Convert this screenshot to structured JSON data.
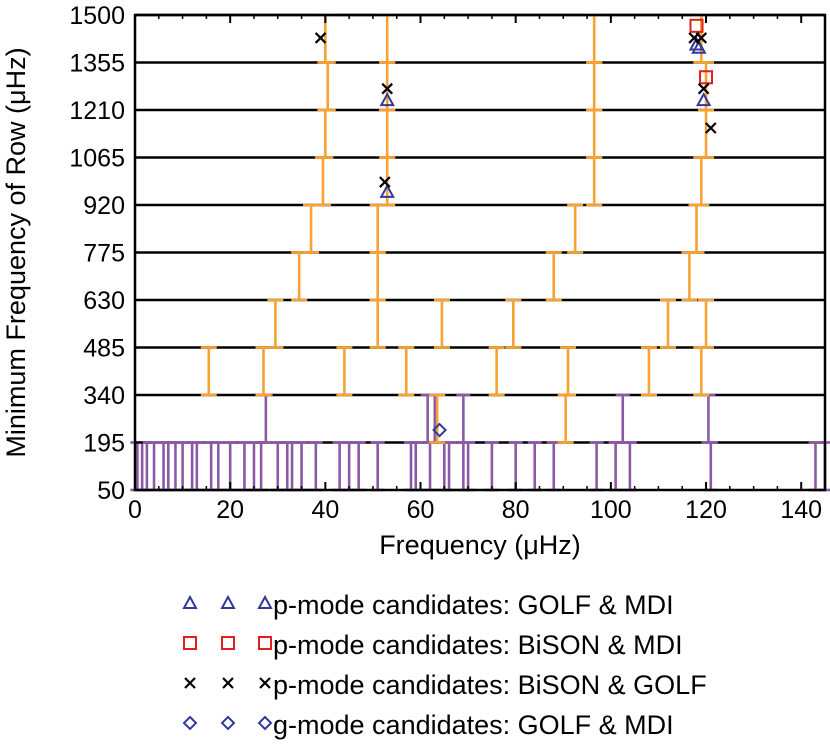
{
  "chart_data": {
    "type": "scatter",
    "xlabel": "Frequency (μHz)",
    "ylabel": "Minimum Frequency of Row (μHz)",
    "xlim": [
      0,
      145
    ],
    "ylim": [
      50,
      1500
    ],
    "x_ticks": [
      0,
      20,
      40,
      60,
      80,
      100,
      120,
      140
    ],
    "y_ticks": [
      50,
      195,
      340,
      485,
      630,
      775,
      920,
      1065,
      1210,
      1355,
      1500
    ],
    "row_lines": [
      195,
      340,
      485,
      630,
      775,
      920,
      1065,
      1210,
      1355,
      1500
    ],
    "colors": {
      "row_line": "#000000",
      "orange_bar": "#f7a233",
      "purple_bar": "#8a5aa5",
      "triangle": "#303a9a",
      "square": "#e02020",
      "cross": "#000000",
      "diamond": "#303a9a"
    },
    "orange_intervals": [
      {
        "row": [
          340,
          485
        ],
        "x": [
          15.5,
          27,
          44,
          57,
          76,
          91,
          108,
          119
        ]
      },
      {
        "row": [
          485,
          630
        ],
        "x": [
          29.5,
          51,
          64.5,
          79.5,
          112,
          120
        ]
      },
      {
        "row": [
          630,
          775
        ],
        "x": [
          34.5,
          51,
          88,
          116.5
        ]
      },
      {
        "row": [
          775,
          920
        ],
        "x": [
          37,
          51,
          92.5,
          118
        ]
      },
      {
        "row": [
          920,
          1065
        ],
        "x": [
          39.5,
          53,
          96.5,
          119
        ]
      },
      {
        "row": [
          1065,
          1210
        ],
        "x": [
          40,
          53,
          96.5,
          120
        ]
      },
      {
        "row": [
          1210,
          1355
        ],
        "x": [
          40.5,
          53,
          96.5,
          120
        ]
      },
      {
        "row": [
          1355,
          1500
        ],
        "x": [
          40,
          53,
          96.5,
          119
        ]
      },
      {
        "row": [
          195,
          340
        ],
        "x": [
          63.5,
          90.5
        ]
      }
    ],
    "purple_intervals": [
      {
        "row": [
          50,
          195
        ],
        "x": [
          0.5,
          1.5,
          2.5,
          4,
          6,
          7,
          8.5,
          10,
          12,
          13,
          16,
          17.5,
          20,
          23,
          25,
          26.5,
          30,
          32,
          33,
          35,
          38,
          43,
          45,
          47,
          51,
          58,
          59,
          62,
          65,
          66,
          69,
          70,
          75,
          80,
          84,
          88,
          97,
          101,
          104,
          121,
          143,
          145
        ]
      },
      {
        "row": [
          195,
          340
        ],
        "x": [
          27.5,
          61.5,
          63,
          69,
          102.5,
          120.5
        ]
      }
    ],
    "series": [
      {
        "name": "p-mode candidates: GOLF & MDI",
        "marker": "triangle",
        "points": [
          [
            53,
            1240
          ],
          [
            53,
            960
          ],
          [
            118.5,
            1400
          ],
          [
            118,
            1410
          ],
          [
            119.5,
            1240
          ]
        ]
      },
      {
        "name": "p-mode candidates: BiSON & MDI",
        "marker": "square",
        "points": [
          [
            118,
            1467
          ],
          [
            120,
            1310
          ]
        ]
      },
      {
        "name": "p-mode candidates: BiSON & GOLF",
        "marker": "cross",
        "points": [
          [
            39,
            1430
          ],
          [
            53,
            1275
          ],
          [
            52.5,
            990
          ],
          [
            117.5,
            1430
          ],
          [
            119,
            1430
          ],
          [
            119.5,
            1275
          ],
          [
            121,
            1155
          ]
        ]
      },
      {
        "name": "g-mode candidates: GOLF & MDI",
        "marker": "diamond",
        "points": [
          [
            64,
            233
          ]
        ]
      }
    ]
  }
}
